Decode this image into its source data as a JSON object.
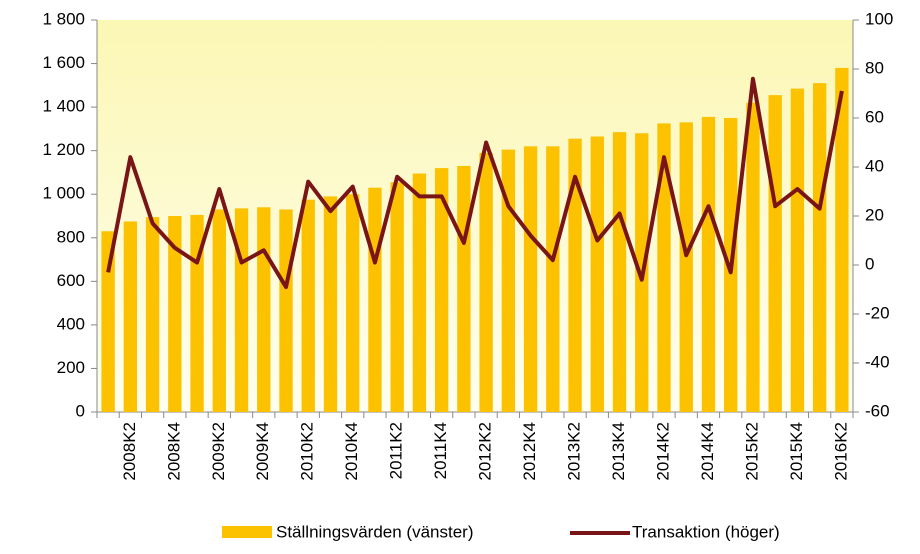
{
  "chart_data": {
    "type": "bar_line",
    "categories": [
      null,
      "2008K2",
      null,
      "2008K4",
      null,
      "2009K2",
      null,
      "2009K4",
      null,
      "2010K2",
      null,
      "2010K4",
      null,
      "2011K2",
      null,
      "2011K4",
      null,
      "2012K2",
      null,
      "2012K4",
      null,
      "2013K2",
      null,
      "2013K4",
      null,
      "2014K2",
      null,
      "2014K4",
      null,
      "2015K2",
      null,
      "2015K4",
      null,
      "2016K2"
    ],
    "series": [
      {
        "name": "Ställningsvärden (vänster)",
        "color": "#fcc200",
        "axis": "y",
        "values": [
          830,
          875,
          895,
          900,
          905,
          930,
          935,
          940,
          930,
          975,
          990,
          1000,
          1030,
          1055,
          1095,
          1120,
          1130,
          1190,
          1205,
          1220,
          1220,
          1255,
          1265,
          1285,
          1280,
          1325,
          1330,
          1355,
          1350,
          1420,
          1455,
          1485,
          1510,
          1580
        ]
      },
      {
        "name": "Transaktion (höger)",
        "color": "#7a1517",
        "axis": "y2",
        "values": [
          -3,
          44,
          17,
          7,
          1,
          31,
          1,
          6,
          -9,
          34,
          22,
          32,
          1,
          36,
          28,
          28,
          9,
          50,
          24,
          12,
          2,
          36,
          10,
          21,
          -6,
          44,
          4,
          24,
          -3,
          76,
          24,
          31,
          23,
          71
        ]
      }
    ],
    "ylim": [
      0,
      1800
    ],
    "yticks": [
      0,
      200,
      400,
      600,
      800,
      {
        "value": 1000,
        "label": "1 000"
      },
      {
        "value": 1200,
        "label": "1 200"
      },
      {
        "value": 1400,
        "label": "1 400"
      },
      {
        "value": 1600,
        "label": "1 600"
      },
      {
        "value": 1800,
        "label": "1 800"
      }
    ],
    "y2lim": [
      -60,
      100
    ],
    "y2ticks": [
      -60,
      -40,
      -20,
      0,
      20,
      40,
      60,
      80,
      100
    ],
    "legend": "bottom"
  }
}
